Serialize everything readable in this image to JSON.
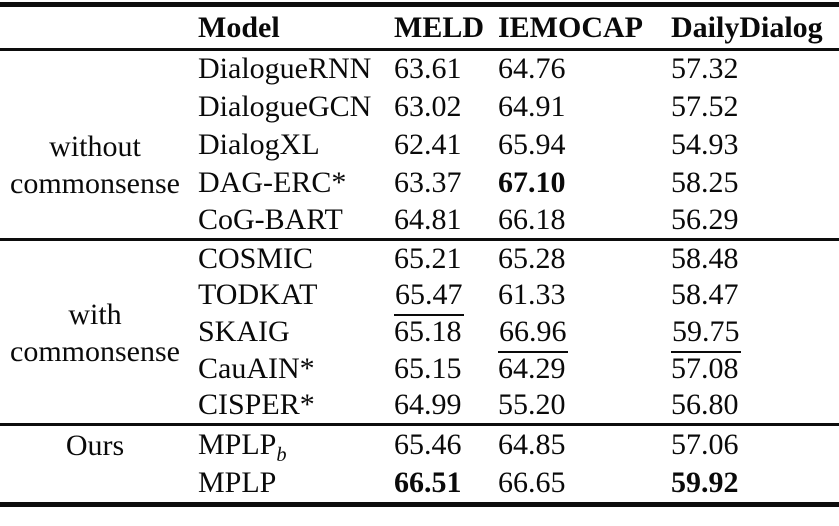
{
  "header": {
    "group_col": "",
    "columns": {
      "model": "Model",
      "meld": "MELD",
      "iemocap": "IEMOCAP",
      "dailydialog": "DailyDialog"
    }
  },
  "sections": [
    {
      "group_lines": {
        "line1": "without",
        "line2": "commonsense"
      },
      "rows": [
        {
          "model": {
            "text": "DialogueRNN"
          },
          "values": [
            {
              "text": "63.61"
            },
            {
              "text": "64.76"
            },
            {
              "text": "57.32"
            }
          ]
        },
        {
          "model": {
            "text": "DialogueGCN"
          },
          "values": [
            {
              "text": "63.02"
            },
            {
              "text": "64.91"
            },
            {
              "text": "57.52"
            }
          ]
        },
        {
          "model": {
            "text": "DialogXL"
          },
          "values": [
            {
              "text": "62.41"
            },
            {
              "text": "65.94"
            },
            {
              "text": "54.93"
            }
          ]
        },
        {
          "model": {
            "text": "DAG-ERC*"
          },
          "values": [
            {
              "text": "63.37"
            },
            {
              "text": "67.10",
              "bold": true
            },
            {
              "text": "58.25"
            }
          ]
        },
        {
          "model": {
            "text": "CoG-BART"
          },
          "values": [
            {
              "text": "64.81"
            },
            {
              "text": "66.18"
            },
            {
              "text": "56.29"
            }
          ]
        }
      ]
    },
    {
      "group_lines": {
        "line1": "with",
        "line2": "commonsense"
      },
      "rows": [
        {
          "model": {
            "text": "COSMIC"
          },
          "values": [
            {
              "text": "65.21"
            },
            {
              "text": "65.28"
            },
            {
              "text": "58.48"
            }
          ]
        },
        {
          "model": {
            "text": "TODKAT"
          },
          "values": [
            {
              "text": "65.47",
              "underline": true
            },
            {
              "text": "61.33"
            },
            {
              "text": "58.47"
            }
          ]
        },
        {
          "model": {
            "text": "SKAIG"
          },
          "values": [
            {
              "text": "65.18"
            },
            {
              "text": "66.96",
              "underline": true
            },
            {
              "text": "59.75",
              "underline": true
            }
          ]
        },
        {
          "model": {
            "text": "CauAIN*"
          },
          "values": [
            {
              "text": "65.15"
            },
            {
              "text": "64.29"
            },
            {
              "text": "57.08"
            }
          ]
        },
        {
          "model": {
            "text": "CISPER*"
          },
          "values": [
            {
              "text": "64.99"
            },
            {
              "text": "55.20"
            },
            {
              "text": "56.80"
            }
          ]
        }
      ]
    },
    {
      "group_lines": {
        "line1": "Ours"
      },
      "rows": [
        {
          "model": {
            "text": "MPLP",
            "subscript": "b"
          },
          "values": [
            {
              "text": "65.46"
            },
            {
              "text": "64.85"
            },
            {
              "text": "57.06"
            }
          ]
        },
        {
          "model": {
            "text": "MPLP"
          },
          "values": [
            {
              "text": "66.51",
              "bold": true
            },
            {
              "text": "66.65"
            },
            {
              "text": "59.92",
              "bold": true
            }
          ]
        }
      ]
    }
  ]
}
